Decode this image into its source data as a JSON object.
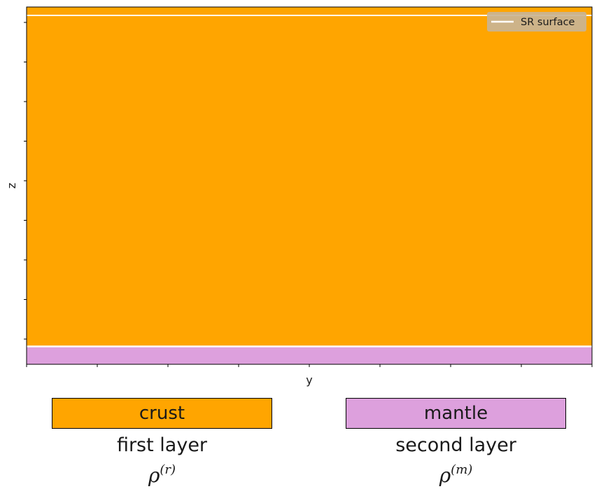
{
  "chart_data": {
    "type": "diagram",
    "xlabel": "y",
    "ylabel": "z",
    "legend": {
      "placement": "top-right",
      "entries": [
        {
          "label": "SR surface",
          "color": "#ffffff"
        }
      ]
    },
    "regions": [
      {
        "name": "crust",
        "color": "#ffa500"
      },
      {
        "name": "mantle",
        "color": "#dda0dd"
      }
    ],
    "x_tick_count": 9,
    "y_tick_count": 9,
    "surface_fraction_from_bottom": 0.05
  },
  "layers": [
    {
      "box_label": "crust",
      "title": "first layer",
      "symbol": "ρ",
      "superscript": "(r)",
      "color": "#ffa500"
    },
    {
      "box_label": "mantle",
      "title": "second layer",
      "symbol": "ρ",
      "superscript": "(m)",
      "color": "#dda0dd"
    }
  ]
}
